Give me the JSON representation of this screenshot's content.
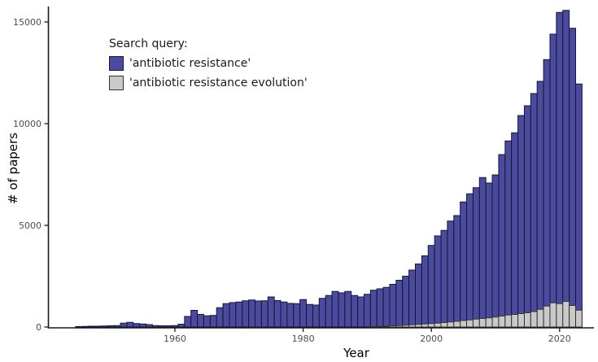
{
  "chart_data": {
    "type": "bar",
    "title": "",
    "xlabel": "Year",
    "ylabel": "# of papers",
    "x_ticks": [
      1960,
      1980,
      2000,
      2020
    ],
    "y_ticks": [
      0,
      5000,
      10000,
      15000
    ],
    "xlim": [
      1944,
      2025
    ],
    "ylim": [
      0,
      15600
    ],
    "grid": false,
    "legend": {
      "title": "Search query:",
      "position": "top-left",
      "entries": [
        {
          "label": "'antibiotic resistance'",
          "fill": "#4b4b9e",
          "border": "#15153a"
        },
        {
          "label": "'antibiotic resistance evolution'",
          "fill": "#c9c9c9",
          "border": "#333333"
        }
      ]
    },
    "years": [
      1945,
      1946,
      1947,
      1948,
      1949,
      1950,
      1951,
      1952,
      1953,
      1954,
      1955,
      1956,
      1957,
      1958,
      1959,
      1960,
      1961,
      1962,
      1963,
      1964,
      1965,
      1966,
      1967,
      1968,
      1969,
      1970,
      1971,
      1972,
      1973,
      1974,
      1975,
      1976,
      1977,
      1978,
      1979,
      1980,
      1981,
      1982,
      1983,
      1984,
      1985,
      1986,
      1987,
      1988,
      1989,
      1990,
      1991,
      1992,
      1993,
      1994,
      1995,
      1996,
      1997,
      1998,
      1999,
      2000,
      2001,
      2002,
      2003,
      2004,
      2005,
      2006,
      2007,
      2008,
      2009,
      2010,
      2011,
      2012,
      2013,
      2014,
      2015,
      2016,
      2017,
      2018,
      2019,
      2020,
      2021,
      2022,
      2023
    ],
    "series": [
      {
        "name": "'antibiotic resistance'",
        "fill": "#4b4b9e",
        "border": "#15153a",
        "values": [
          20,
          30,
          40,
          40,
          50,
          60,
          70,
          190,
          230,
          170,
          150,
          120,
          70,
          60,
          60,
          70,
          140,
          520,
          820,
          620,
          550,
          570,
          950,
          1150,
          1200,
          1230,
          1290,
          1330,
          1280,
          1290,
          1480,
          1300,
          1230,
          1160,
          1150,
          1350,
          1110,
          1080,
          1410,
          1550,
          1750,
          1680,
          1750,
          1550,
          1480,
          1610,
          1810,
          1880,
          1950,
          2100,
          2300,
          2500,
          2800,
          3100,
          3500,
          4010,
          4480,
          4750,
          5210,
          5480,
          6150,
          6550,
          6850,
          7350,
          7080,
          7480,
          8480,
          9150,
          9550,
          10400,
          10880,
          11480,
          12080,
          13150,
          14400,
          15470,
          15570,
          14690,
          11950
        ]
      },
      {
        "name": "'antibiotic resistance evolution'",
        "fill": "#c9c9c9",
        "border": "#333333",
        "values": [
          0,
          0,
          0,
          0,
          0,
          0,
          0,
          0,
          0,
          0,
          0,
          0,
          0,
          0,
          0,
          0,
          0,
          0,
          0,
          0,
          0,
          0,
          0,
          0,
          0,
          0,
          0,
          0,
          0,
          0,
          0,
          0,
          0,
          0,
          0,
          0,
          0,
          0,
          0,
          0,
          0,
          0,
          0,
          0,
          0,
          0,
          20,
          30,
          40,
          60,
          70,
          90,
          110,
          130,
          150,
          170,
          190,
          220,
          250,
          280,
          320,
          350,
          390,
          420,
          450,
          490,
          540,
          590,
          620,
          660,
          700,
          760,
          870,
          1030,
          1190,
          1150,
          1260,
          1060,
          830
        ]
      }
    ],
    "axis_color": "#1a1a1a",
    "tick_label_color": "#4d4d4d"
  }
}
